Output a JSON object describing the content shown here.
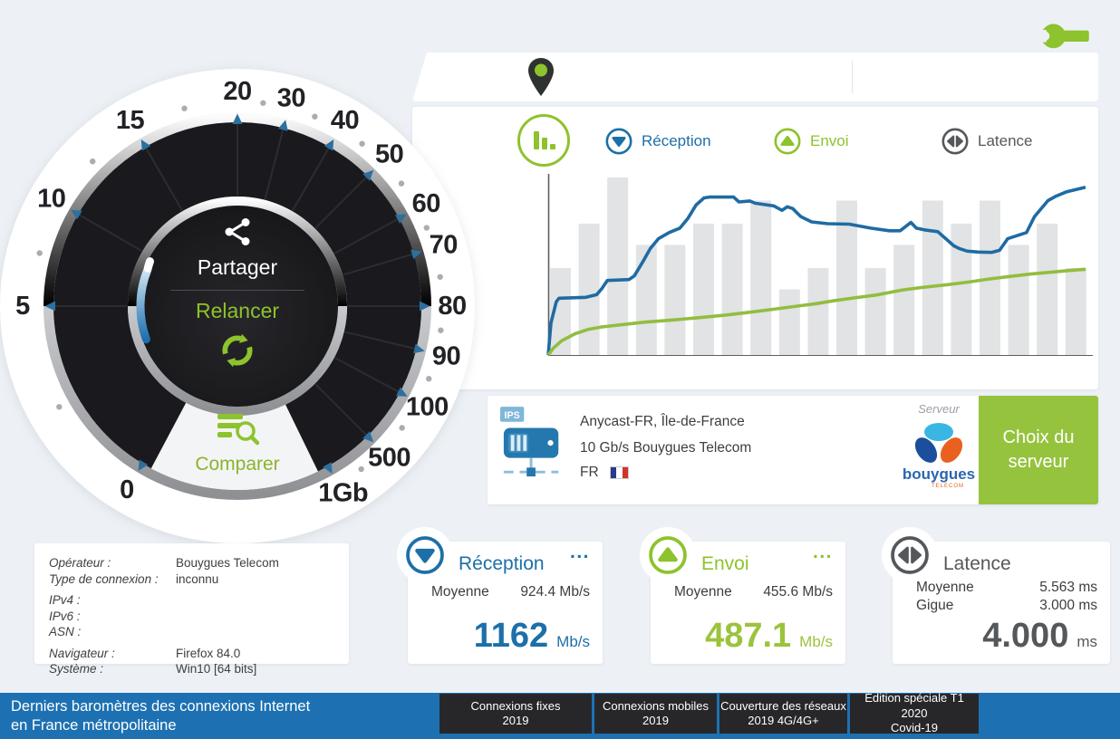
{
  "colors": {
    "accent_blue": "#1d6fa8",
    "accent_green": "#8dc32c",
    "accent_gray": "#55585b",
    "tick_blue": "#2d6f9e",
    "bar_gray": "#e1e3e5",
    "footer_blue": "#1d71b2",
    "button_green": "#95c33d"
  },
  "gauge": {
    "scale": [
      {
        "label": "0",
        "angle": 211
      },
      {
        "label": "5",
        "angle": 270
      },
      {
        "label": "10",
        "angle": 300
      },
      {
        "label": "15",
        "angle": 330
      },
      {
        "label": "20",
        "angle": 0
      },
      {
        "label": "30",
        "angle": 14.5
      },
      {
        "label": "40",
        "angle": 30
      },
      {
        "label": "50",
        "angle": 45
      },
      {
        "label": "60",
        "angle": 61.5
      },
      {
        "label": "70",
        "angle": 73.5
      },
      {
        "label": "80",
        "angle": 90
      },
      {
        "label": "90",
        "angle": 103.5
      },
      {
        "label": "100",
        "angle": 118
      },
      {
        "label": "500",
        "angle": 135
      },
      {
        "label": "1Gb",
        "angle": 150.5
      }
    ],
    "dot_angles": [
      240.5,
      285,
      315,
      345,
      7.2,
      22.2,
      37.5,
      53.2,
      67.5,
      81.8,
      96.8,
      110.8,
      126.5,
      142.8
    ],
    "center": {
      "share": "Partager",
      "restart": "Relancer",
      "compare": "Comparer"
    }
  },
  "chart": {
    "tabs": [
      {
        "label": "Réception",
        "color": "#1d6fa8"
      },
      {
        "label": "Envoi",
        "color": "#8dc32c"
      },
      {
        "label": "Latence",
        "color": "#55585b"
      }
    ]
  },
  "chart_data": {
    "type": "line+bar",
    "title": "",
    "xlabel": "",
    "ylabel": "",
    "grid": false,
    "legend_position": "tabs above chart",
    "axes_labels_visible": false,
    "y_range_relative": [
      0,
      1
    ],
    "bars": {
      "color": "#e1e3e5",
      "values_relative": [
        0.49,
        0.74,
        1.0,
        0.62,
        0.62,
        0.74,
        0.74,
        0.87,
        0.37,
        0.49,
        0.87,
        0.49,
        0.62,
        0.87,
        0.74,
        0.87,
        0.62,
        0.74,
        0.49
      ]
    },
    "series": [
      {
        "name": "Réception",
        "color": "#1f6ba3",
        "points_relative": [
          [
            0,
            0
          ],
          [
            0.005,
            0.18
          ],
          [
            0.015,
            0.3
          ],
          [
            0.02,
            0.32
          ],
          [
            0.07,
            0.325
          ],
          [
            0.09,
            0.34
          ],
          [
            0.1,
            0.375
          ],
          [
            0.11,
            0.42
          ],
          [
            0.15,
            0.425
          ],
          [
            0.16,
            0.445
          ],
          [
            0.175,
            0.52
          ],
          [
            0.19,
            0.6
          ],
          [
            0.205,
            0.655
          ],
          [
            0.225,
            0.69
          ],
          [
            0.245,
            0.715
          ],
          [
            0.26,
            0.77
          ],
          [
            0.275,
            0.845
          ],
          [
            0.29,
            0.885
          ],
          [
            0.3,
            0.89
          ],
          [
            0.345,
            0.89
          ],
          [
            0.355,
            0.862
          ],
          [
            0.375,
            0.868
          ],
          [
            0.385,
            0.855
          ],
          [
            0.42,
            0.84
          ],
          [
            0.435,
            0.815
          ],
          [
            0.445,
            0.835
          ],
          [
            0.455,
            0.825
          ],
          [
            0.47,
            0.78
          ],
          [
            0.49,
            0.75
          ],
          [
            0.52,
            0.74
          ],
          [
            0.56,
            0.737
          ],
          [
            0.6,
            0.715
          ],
          [
            0.635,
            0.7
          ],
          [
            0.655,
            0.7
          ],
          [
            0.675,
            0.747
          ],
          [
            0.685,
            0.715
          ],
          [
            0.7,
            0.705
          ],
          [
            0.725,
            0.695
          ],
          [
            0.74,
            0.655
          ],
          [
            0.755,
            0.615
          ],
          [
            0.765,
            0.6
          ],
          [
            0.78,
            0.585
          ],
          [
            0.8,
            0.58
          ],
          [
            0.825,
            0.578
          ],
          [
            0.84,
            0.59
          ],
          [
            0.855,
            0.655
          ],
          [
            0.875,
            0.675
          ],
          [
            0.89,
            0.69
          ],
          [
            0.905,
            0.78
          ],
          [
            0.93,
            0.87
          ],
          [
            0.945,
            0.895
          ],
          [
            0.965,
            0.92
          ],
          [
            1.0,
            0.945
          ]
        ]
      },
      {
        "name": "Envoi",
        "color": "#92bd3f",
        "points_relative": [
          [
            0,
            0
          ],
          [
            0.01,
            0.04
          ],
          [
            0.025,
            0.08
          ],
          [
            0.05,
            0.12
          ],
          [
            0.075,
            0.145
          ],
          [
            0.1,
            0.158
          ],
          [
            0.14,
            0.172
          ],
          [
            0.18,
            0.185
          ],
          [
            0.23,
            0.197
          ],
          [
            0.28,
            0.21
          ],
          [
            0.33,
            0.225
          ],
          [
            0.38,
            0.243
          ],
          [
            0.43,
            0.262
          ],
          [
            0.47,
            0.278
          ],
          [
            0.5,
            0.29
          ],
          [
            0.53,
            0.305
          ],
          [
            0.57,
            0.322
          ],
          [
            0.61,
            0.338
          ],
          [
            0.66,
            0.367
          ],
          [
            0.7,
            0.382
          ],
          [
            0.74,
            0.395
          ],
          [
            0.78,
            0.41
          ],
          [
            0.82,
            0.428
          ],
          [
            0.86,
            0.443
          ],
          [
            0.9,
            0.457
          ],
          [
            0.94,
            0.468
          ],
          [
            0.97,
            0.476
          ],
          [
            1.0,
            0.483
          ]
        ]
      }
    ]
  },
  "server": {
    "icon_badge": "IPS",
    "line1": "Anycast-FR, Île-de-France",
    "line2": "10 Gb/s Bouygues Telecom",
    "country": "FR",
    "caption": "Serveur",
    "provider": "bouygues",
    "provider_sub": "TELECOM",
    "button": "Choix du serveur"
  },
  "stats": {
    "rows": [
      {
        "label": "Opérateur :",
        "value": "Bouygues Telecom"
      },
      {
        "label": "Type de connexion :",
        "value": "inconnu"
      },
      {
        "label": "IPv4 :",
        "value": ""
      },
      {
        "label": "IPv6 :",
        "value": ""
      },
      {
        "label": "ASN :",
        "value": ""
      },
      {
        "label": "Navigateur :",
        "value": "Firefox 84.0"
      },
      {
        "label": "Système :",
        "value": "Win10 [64 bits]"
      }
    ]
  },
  "results": {
    "reception": {
      "title": "Réception",
      "menu": "...",
      "avg_label": "Moyenne",
      "avg_value": "924.4 Mb/s",
      "value": "1162",
      "unit": "Mb/s"
    },
    "envoi": {
      "title": "Envoi",
      "menu": "...",
      "avg_label": "Moyenne",
      "avg_value": "455.6 Mb/s",
      "value": "487.1",
      "unit": "Mb/s"
    },
    "latence": {
      "title": "Latence",
      "avg_label": "Moyenne",
      "avg_value": "5.563 ms",
      "jitter_label": "Gigue",
      "jitter_value": "3.000 ms",
      "value": "4.000",
      "unit": "ms"
    }
  },
  "footer": {
    "title_line1": "Derniers baromètres des connexions Internet",
    "title_line2": "en France métropolitaine",
    "links": [
      {
        "line1": "Connexions fixes",
        "line2": "2019"
      },
      {
        "line1": "Connexions mobiles",
        "line2": "2019"
      },
      {
        "line1": "Couverture des réseaux",
        "line2": "2019 4G/4G+"
      },
      {
        "line1": "Édition spéciale T1 2020",
        "line2": "Covid-19"
      }
    ]
  }
}
